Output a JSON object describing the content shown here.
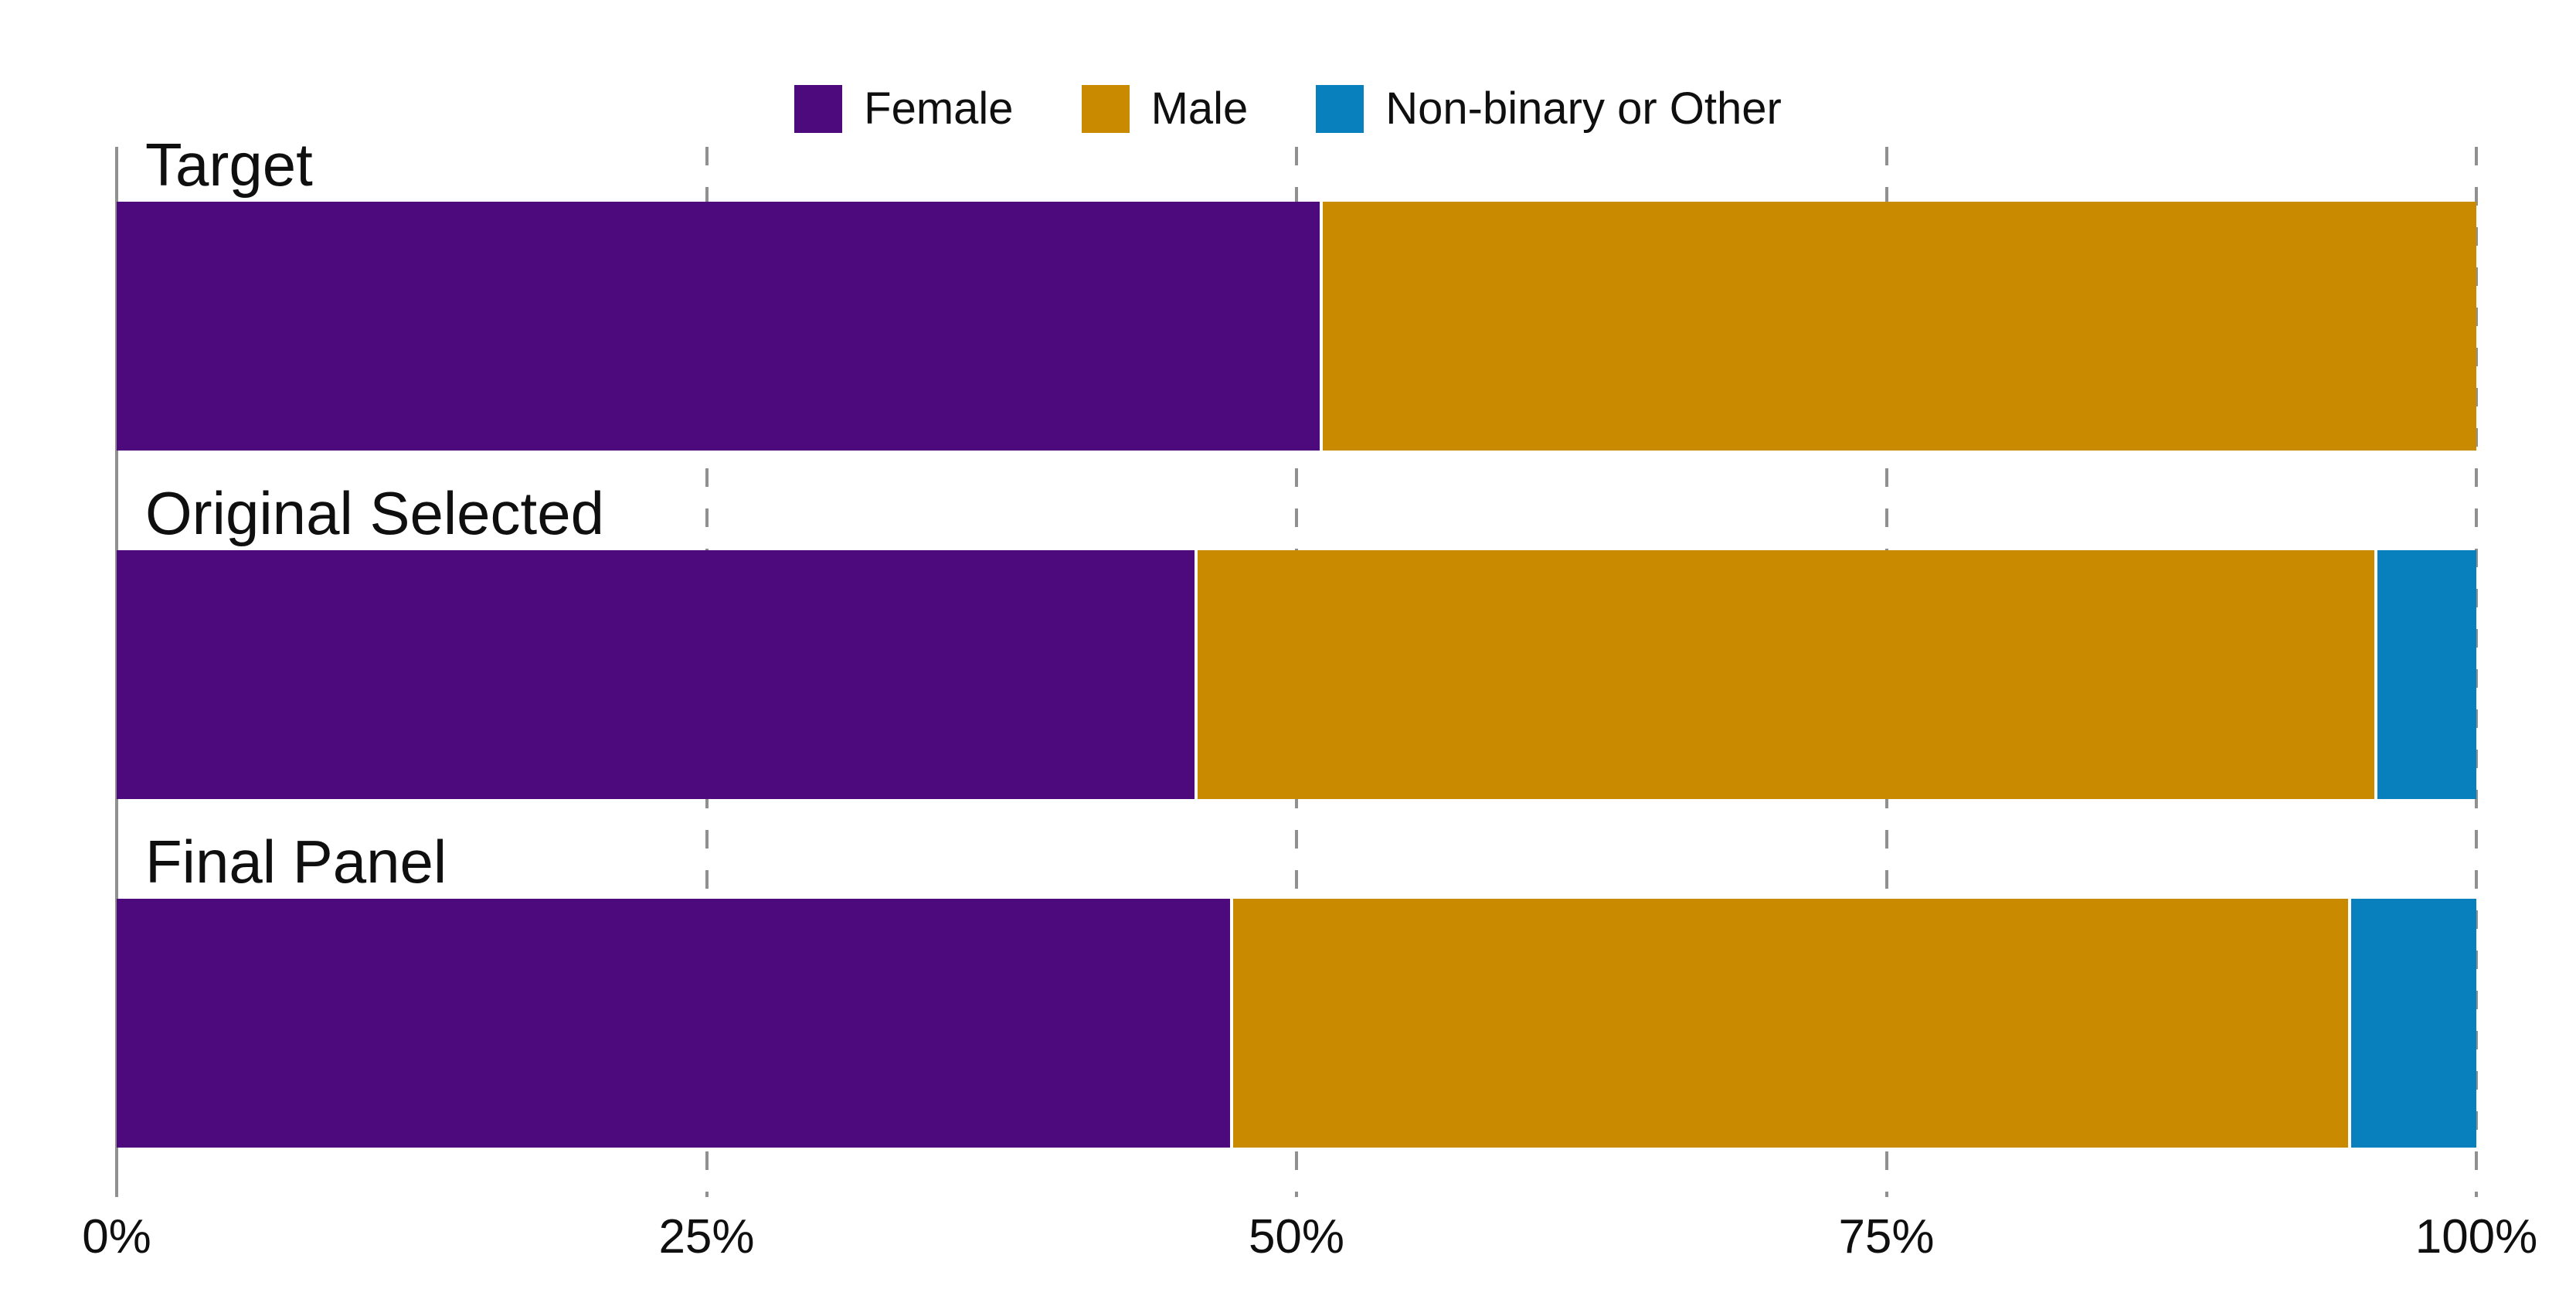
{
  "chart_data": {
    "type": "bar",
    "orientation": "horizontal",
    "stacked": true,
    "unit": "%",
    "title": "",
    "categories": [
      "Target",
      "Original Selected",
      "Final Panel"
    ],
    "series": [
      {
        "name": "Female",
        "color": "#4C0A7D",
        "values": [
          51.1,
          45.8,
          47.3
        ]
      },
      {
        "name": "Male",
        "color": "#C98A00",
        "values": [
          48.9,
          50.0,
          47.4
        ]
      },
      {
        "name": "Non-binary or Other",
        "color": "#0780BD",
        "values": [
          0,
          4.2,
          5.3
        ]
      }
    ],
    "x_axis": {
      "tick_labels": [
        "0%",
        "25%",
        "50%",
        "75%",
        "100%"
      ],
      "tick_values": [
        0,
        25,
        50,
        75,
        100
      ],
      "range": [
        0,
        100
      ]
    },
    "legend": {
      "position": "top",
      "entries": [
        "Female",
        "Male",
        "Non-binary or Other"
      ]
    },
    "grid": {
      "solid_axis_at": 0,
      "vertical_dashed_at": [
        25,
        50,
        75,
        100
      ],
      "color": "#909090"
    },
    "category_label_position": "above-bar"
  },
  "colors": {
    "background": "#ffffff",
    "text": "#0f0f0f",
    "grid": "#909090",
    "separator": "#ffffff"
  }
}
